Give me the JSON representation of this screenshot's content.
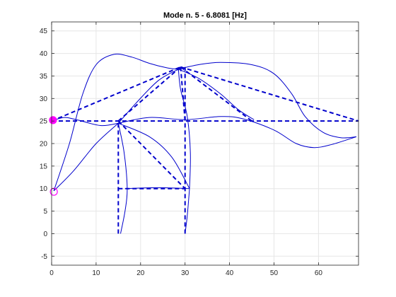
{
  "chart_data": {
    "type": "line",
    "title": "Mode n. 5 - 6.8081 [Hz]",
    "xlabel": "",
    "ylabel": "",
    "xlim": [
      0,
      69
    ],
    "ylim": [
      -7,
      47
    ],
    "xticks": [
      0,
      10,
      20,
      30,
      40,
      50,
      60
    ],
    "yticks": [
      -5,
      0,
      5,
      10,
      15,
      20,
      25,
      30,
      35,
      40,
      45
    ],
    "grid": true,
    "colors": {
      "structure": "#0000cc",
      "marker": "#ff00ff",
      "grid": "#e6e6e6",
      "axes": "#262626"
    },
    "undeformed_structure": [
      {
        "name": "",
        "points": [
          [
            15,
            0
          ],
          [
            15,
            25
          ]
        ]
      },
      {
        "name": "",
        "points": [
          [
            30,
            0
          ],
          [
            30,
            37
          ]
        ]
      },
      {
        "name": "",
        "points": [
          [
            15,
            10
          ],
          [
            30,
            10
          ]
        ]
      },
      {
        "name": "",
        "points": [
          [
            15,
            25
          ],
          [
            30,
            10
          ]
        ]
      },
      {
        "name": "",
        "points": [
          [
            0,
            25
          ],
          [
            69,
            25
          ]
        ]
      },
      {
        "name": "",
        "points": [
          [
            0,
            25
          ],
          [
            29,
            37
          ]
        ]
      },
      {
        "name": "",
        "points": [
          [
            15,
            25
          ],
          [
            29,
            37
          ]
        ]
      },
      {
        "name": "",
        "points": [
          [
            29,
            37
          ],
          [
            30,
            25
          ]
        ]
      },
      {
        "name": "",
        "points": [
          [
            29,
            37
          ],
          [
            45,
            25
          ]
        ]
      },
      {
        "name": "",
        "points": [
          [
            29,
            37
          ],
          [
            69,
            25
          ]
        ]
      }
    ],
    "deformed_shape": [
      {
        "name": "",
        "points": [
          [
            0.5,
            9.5
          ],
          [
            4,
            20
          ],
          [
            7,
            31
          ],
          [
            10,
            37.5
          ],
          [
            14,
            39.8
          ],
          [
            18,
            39.2
          ],
          [
            22,
            37.8
          ],
          [
            26,
            36.8
          ],
          [
            28.5,
            36.5
          ]
        ]
      },
      {
        "name": "",
        "points": [
          [
            0.5,
            9.5
          ],
          [
            5,
            14
          ],
          [
            10,
            20
          ],
          [
            15,
            24.5
          ]
        ]
      },
      {
        "name": "",
        "points": [
          [
            28.5,
            36.5
          ],
          [
            33,
            37.5
          ],
          [
            38,
            38
          ],
          [
            45,
            37.5
          ],
          [
            50,
            35.5
          ],
          [
            54,
            31
          ],
          [
            57,
            26
          ],
          [
            61,
            22.5
          ],
          [
            65,
            21.3
          ],
          [
            68.5,
            21.5
          ]
        ]
      },
      {
        "name": "",
        "points": [
          [
            15,
            24.5
          ],
          [
            22,
            25.8
          ],
          [
            30,
            25.3
          ],
          [
            38,
            26
          ],
          [
            43,
            25.5
          ],
          [
            50,
            23
          ],
          [
            55,
            20
          ],
          [
            59,
            19.1
          ],
          [
            63,
            19.8
          ],
          [
            68.5,
            21.5
          ]
        ]
      },
      {
        "name": "",
        "points": [
          [
            15,
            24.5
          ],
          [
            19,
            29
          ],
          [
            24,
            34
          ],
          [
            28.5,
            36.5
          ]
        ]
      },
      {
        "name": "",
        "points": [
          [
            28.5,
            36.5
          ],
          [
            29,
            32
          ],
          [
            30.5,
            26
          ],
          [
            31.2,
            18
          ],
          [
            31,
            10
          ]
        ]
      },
      {
        "name": "",
        "points": [
          [
            28.5,
            36.5
          ],
          [
            33,
            34.5
          ],
          [
            38,
            31
          ],
          [
            42,
            27.5
          ],
          [
            45.5,
            25.3
          ]
        ]
      },
      {
        "name": "",
        "points": [
          [
            15,
            24.5
          ],
          [
            16.3,
            18
          ],
          [
            17,
            10
          ],
          [
            16.5,
            5
          ],
          [
            15.5,
            0
          ]
        ]
      },
      {
        "name": "",
        "points": [
          [
            31,
            10
          ],
          [
            30.5,
            4
          ],
          [
            30,
            0
          ]
        ]
      },
      {
        "name": "",
        "points": [
          [
            16.5,
            10
          ],
          [
            24,
            10.2
          ],
          [
            31,
            10
          ]
        ]
      },
      {
        "name": "",
        "points": [
          [
            15,
            24.5
          ],
          [
            22,
            21.5
          ],
          [
            27,
            17
          ],
          [
            31,
            10
          ]
        ]
      },
      {
        "name": "",
        "points": [
          [
            15,
            24.5
          ],
          [
            11,
            24
          ],
          [
            6,
            25.2
          ],
          [
            3,
            25.8
          ],
          [
            0.5,
            25.2
          ]
        ]
      }
    ],
    "markers": [
      {
        "name": "",
        "x": 0.3,
        "y": 25.2,
        "filled": true
      },
      {
        "name": "",
        "x": 0.5,
        "y": 9.3,
        "filled": false
      }
    ]
  }
}
